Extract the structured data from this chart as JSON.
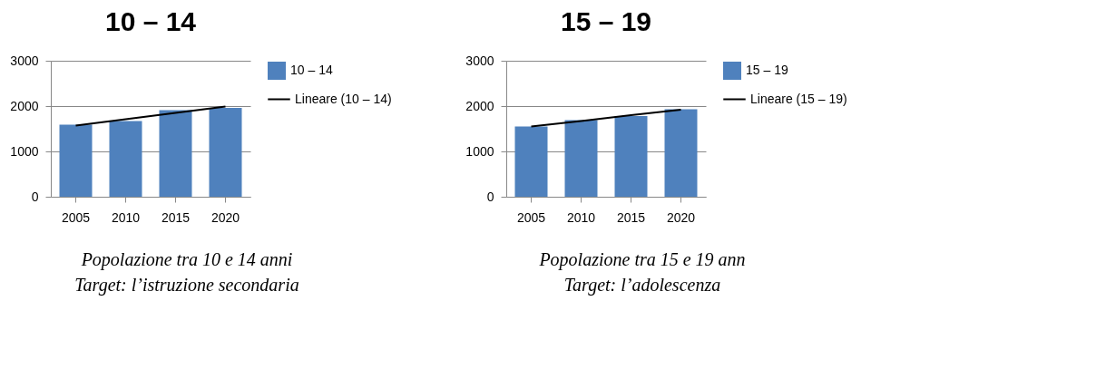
{
  "chart_data": [
    {
      "type": "bar",
      "title": "10 – 14",
      "categories": [
        "2005",
        "2010",
        "2015",
        "2020"
      ],
      "ylim": [
        0,
        3000
      ],
      "yticks": [
        0,
        1000,
        2000,
        3000
      ],
      "grid": "y",
      "legend": "right",
      "series": [
        {
          "name": "10 – 14",
          "color": "#4f81bd",
          "values": [
            1590,
            1670,
            1910,
            1960
          ]
        },
        {
          "name": "Lineare (10 – 14)",
          "type": "line",
          "color": "#000000",
          "values": [
            1570,
            1710,
            1850,
            1990
          ]
        }
      ],
      "annotations": [
        "Popolazione tra 10 e 14 anni",
        "Target: l’istruzione secondaria"
      ]
    },
    {
      "type": "bar",
      "title": "15 – 19",
      "categories": [
        "2005",
        "2010",
        "2015",
        "2020"
      ],
      "ylim": [
        0,
        3000
      ],
      "yticks": [
        0,
        1000,
        2000,
        3000
      ],
      "grid": "y",
      "legend": "right",
      "series": [
        {
          "name": "15 – 19",
          "color": "#4f81bd",
          "values": [
            1550,
            1690,
            1780,
            1930
          ]
        },
        {
          "name": "Lineare (15 – 19)",
          "type": "line",
          "color": "#000000",
          "values": [
            1550,
            1670,
            1800,
            1920
          ]
        }
      ],
      "annotations": [
        "Popolazione tra 15 e 19 ann",
        "Target: l’adolescenza"
      ]
    }
  ]
}
